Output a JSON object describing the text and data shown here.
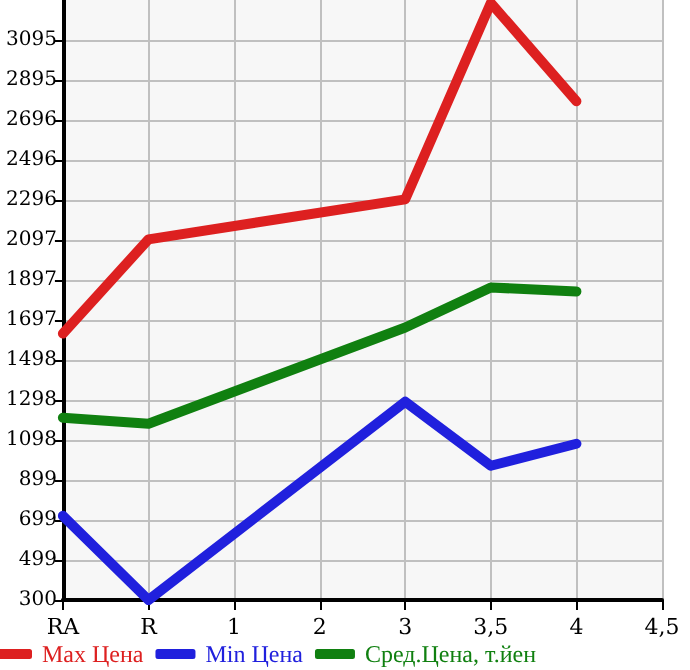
{
  "chart_data": {
    "type": "line",
    "categories": [
      "RA",
      "R",
      "1",
      "2",
      "3",
      "3,5",
      "4",
      "4,5"
    ],
    "series": [
      {
        "name": "Max Цена",
        "color": "#dd2020",
        "values": [
          1630,
          2100,
          null,
          null,
          2300,
          3280,
          2790,
          null
        ]
      },
      {
        "name": "Min Цена",
        "color": "#2020dd",
        "values": [
          720,
          300,
          null,
          null,
          1290,
          970,
          1080,
          null
        ]
      },
      {
        "name": "Сред.Цена, т.йен",
        "color": "#108010",
        "values": [
          1210,
          1180,
          null,
          null,
          1660,
          1860,
          1840,
          null
        ]
      }
    ],
    "ylim": [
      300,
      3295
    ],
    "yticks": [
      300,
      499,
      699,
      899,
      1098,
      1298,
      1498,
      1697,
      1897,
      2097,
      2296,
      2496,
      2696,
      2895,
      3095
    ],
    "grid": true,
    "legend": "bottom",
    "marker": "none",
    "line_style": "solid"
  }
}
